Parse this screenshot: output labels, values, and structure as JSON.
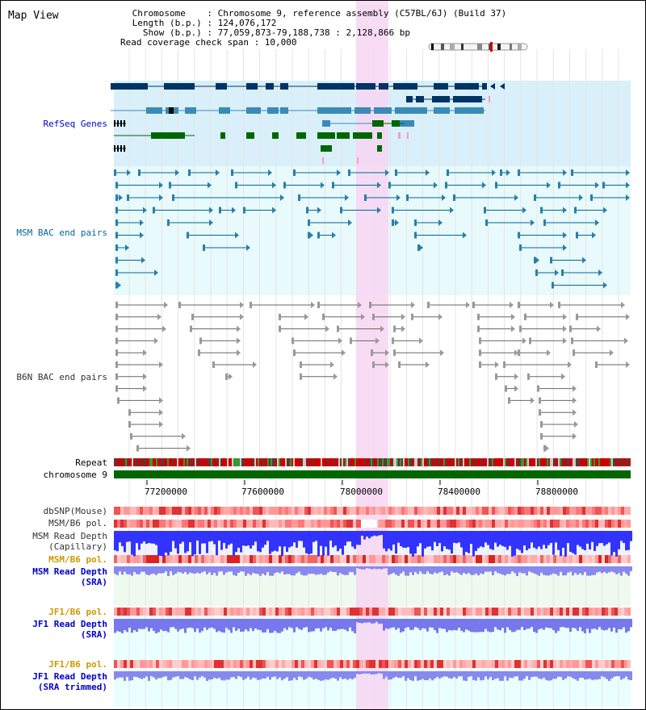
{
  "app": {
    "title": "Map View"
  },
  "header": {
    "chromosome_line": " Chromosome    : Chromosome 9, reference assembly (C57BL/6J) (Build 37)",
    "length_line": " Length (b.p.) : 124,076,172",
    "show_line": "   Show (b.p.) : 77,059,873-79,188,738 : 2,128,866 bp",
    "coverage_line": "Read coverage check span : 10,000"
  },
  "tracks": {
    "refseq": {
      "label": "RefSeq Genes",
      "color": "#0000cc"
    },
    "msm_bac": {
      "label": "MSM BAC end pairs",
      "color": "#006699"
    },
    "b6n_bac": {
      "label": "B6N BAC end pairs",
      "color": "#333333"
    },
    "repeat": {
      "label": "Repeat"
    },
    "chromosome": {
      "label": "chromosome 9"
    },
    "dbsnp": {
      "label": "dbSNP(Mouse)"
    },
    "msm_b6_pol": {
      "label": "MSM/B6 pol."
    },
    "msm_depth_cap": {
      "label": "MSM Read Depth",
      "sublabel": "(Capillary)"
    },
    "msm_b6_pol_sra": {
      "label": "MSM/B6 pol.",
      "color": "#cc9900"
    },
    "msm_depth_sra": {
      "label": "MSM Read Depth",
      "sublabel": "(SRA)",
      "color": "#0000cc"
    },
    "jf1_b6_pol": {
      "label": "JF1/B6 pol.",
      "color": "#cc9900"
    },
    "jf1_depth_sra": {
      "label": "JF1 Read Depth",
      "sublabel": "(SRA)",
      "color": "#0000cc"
    },
    "jf1_b6_pol_trim": {
      "label": "JF1/B6 pol.",
      "color": "#cc9900"
    },
    "jf1_depth_trim": {
      "label": "JF1 Read Depth",
      "sublabel": "(SRA trimmed)",
      "color": "#0000cc"
    }
  },
  "axis": {
    "tick_labels": [
      "77200000",
      "77600000",
      "78000000",
      "78400000",
      "78800000"
    ],
    "range": [
      77059873,
      79188738
    ]
  },
  "colors": {
    "highlight": "#f7d6f2",
    "refseq_bg": "#d9f0fa",
    "msm_bg": "#e8fafb",
    "gene_dark": "#003366",
    "gene_mid": "#3a8ab8",
    "gene_green": "#006600",
    "chromosome_bar": "#006600"
  }
}
